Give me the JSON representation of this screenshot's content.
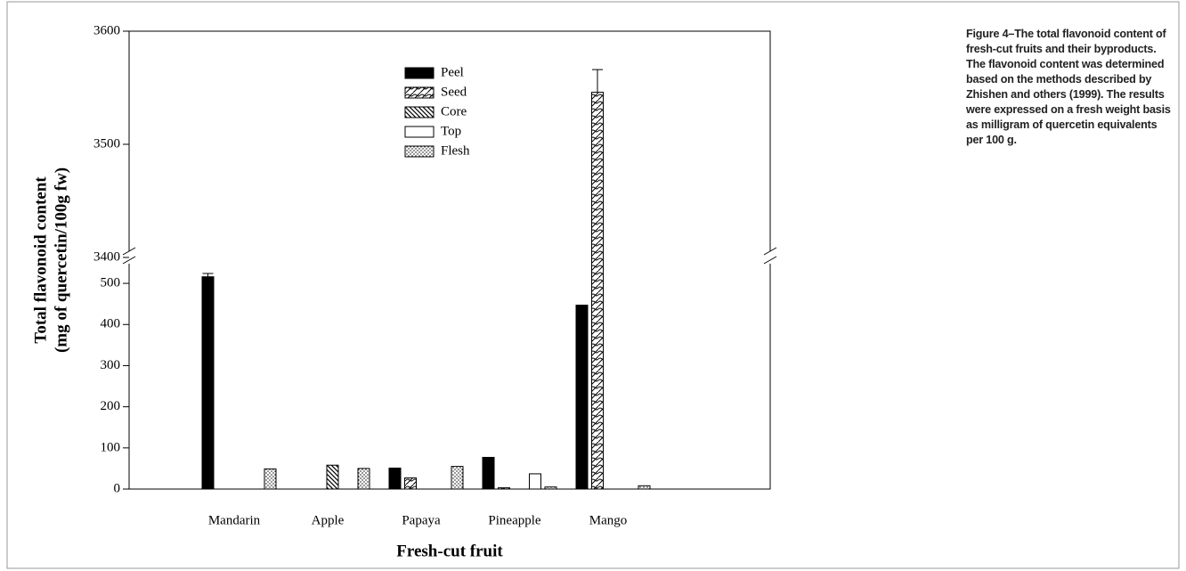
{
  "chart_data": {
    "type": "bar",
    "categories": [
      "Mandarin",
      "Apple",
      "Papaya",
      "Pineapple",
      "Mango"
    ],
    "series": [
      {
        "name": "Peel",
        "color": "#000000",
        "pattern": "solid",
        "values": [
          516,
          null,
          51,
          77,
          447
        ],
        "errors": [
          8,
          null,
          null,
          null,
          null
        ]
      },
      {
        "name": "Seed",
        "color": "#000000",
        "pattern": "crosshatch",
        "values": [
          null,
          null,
          27,
          3,
          3546
        ],
        "errors": [
          null,
          null,
          null,
          null,
          20
        ]
      },
      {
        "name": "Core",
        "color": "#000000",
        "pattern": "hatch",
        "values": [
          null,
          58,
          null,
          null,
          null
        ]
      },
      {
        "name": "Top",
        "color": "#000000",
        "pattern": "none",
        "values": [
          null,
          null,
          null,
          37,
          null
        ]
      },
      {
        "name": "Flesh",
        "color": "#000000",
        "pattern": "dots",
        "values": [
          49,
          50,
          55,
          5,
          8
        ]
      }
    ],
    "y_label": [
      "Total flavonoid content",
      "(mg of quercetin/100g fw)"
    ],
    "x_label": "Fresh-cut fruit",
    "ylim": [
      0,
      3600
    ],
    "axis_break": [
      563,
      3400
    ],
    "yticks": [
      0,
      100,
      200,
      300,
      400,
      500,
      3400,
      3500,
      3600
    ],
    "legend": "top"
  },
  "caption": "Figure 4–The total flavonoid content of fresh-cut fruits and their byproducts. The flavonoid content was determined based on the methods described by Zhishen and others (1999). The results were expressed on a fresh weight basis as milligram of quercetin equivalents per 100 g."
}
